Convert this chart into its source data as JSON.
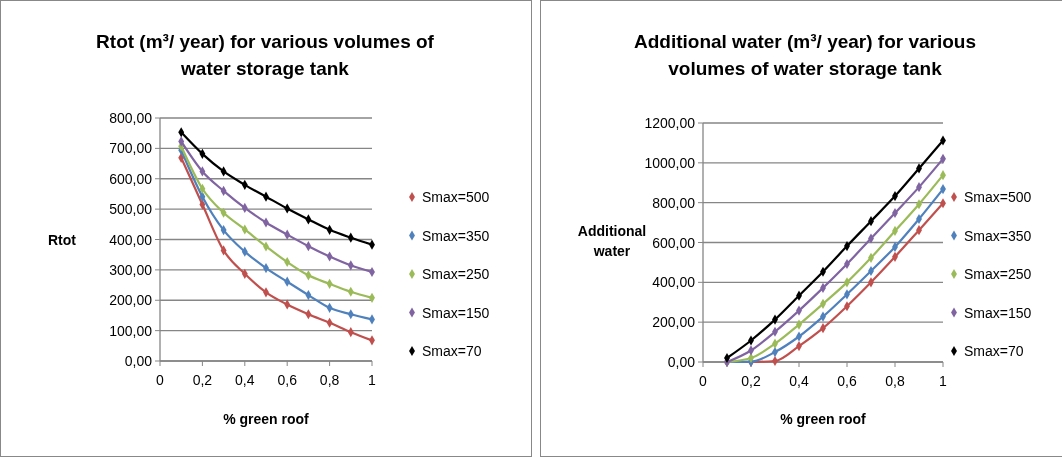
{
  "chart_data": [
    {
      "type": "line",
      "title": "Rtot (m³/ year) for various volumes of water storage tank",
      "xlabel": "% green roof",
      "ylabel": "Rtot",
      "x": [
        0.1,
        0.2,
        0.3,
        0.4,
        0.5,
        0.6,
        0.7,
        0.8,
        0.9,
        1
      ],
      "xlim": [
        0,
        1
      ],
      "xticks": [
        {
          "value": 0,
          "label": "0"
        },
        {
          "value": 0.2,
          "label": "0,2"
        },
        {
          "value": 0.4,
          "label": "0,4"
        },
        {
          "value": 0.6,
          "label": "0,6"
        },
        {
          "value": 0.8,
          "label": "0,8"
        },
        {
          "value": 1,
          "label": "1"
        }
      ],
      "ylim": [
        0,
        800
      ],
      "yticks": [
        {
          "value": 0,
          "label": "0,00"
        },
        {
          "value": 100,
          "label": "100,00"
        },
        {
          "value": 200,
          "label": "200,00"
        },
        {
          "value": 300,
          "label": "300,00"
        },
        {
          "value": 400,
          "label": "400,00"
        },
        {
          "value": 500,
          "label": "500,00"
        },
        {
          "value": 600,
          "label": "600,00"
        },
        {
          "value": 700,
          "label": "700,00"
        },
        {
          "value": 800,
          "label": "800,00"
        }
      ],
      "grid": "y",
      "legend": "right",
      "marker": "diamond",
      "line_style": "solid",
      "series": [
        {
          "name": "Smax=500",
          "color": "#c0504d",
          "values": [
            669,
            515,
            364,
            287,
            226,
            186,
            154,
            126,
            95,
            68
          ]
        },
        {
          "name": "Smax=350",
          "color": "#4f81bd",
          "values": [
            694,
            541,
            431,
            360,
            306,
            261,
            217,
            175,
            154,
            137
          ]
        },
        {
          "name": "Smax=250",
          "color": "#9bbb59",
          "values": [
            707,
            567,
            488,
            433,
            377,
            326,
            282,
            254,
            228,
            208
          ]
        },
        {
          "name": "Smax=150",
          "color": "#8064a2",
          "values": [
            723,
            624,
            560,
            504,
            456,
            416,
            378,
            344,
            315,
            293
          ]
        },
        {
          "name": "Smax=70",
          "color": "#000000",
          "values": [
            753,
            682,
            624,
            580,
            541,
            502,
            466,
            432,
            406,
            383
          ]
        }
      ]
    },
    {
      "type": "line",
      "title": "Additional water (m³/ year)  for various volumes of water storage tank",
      "xlabel": "% green roof",
      "ylabel": "Additional water",
      "x": [
        0.1,
        0.2,
        0.3,
        0.4,
        0.5,
        0.6,
        0.7,
        0.8,
        0.9,
        1
      ],
      "xlim": [
        0,
        1
      ],
      "xticks": [
        {
          "value": 0,
          "label": "0"
        },
        {
          "value": 0.2,
          "label": "0,2"
        },
        {
          "value": 0.4,
          "label": "0,4"
        },
        {
          "value": 0.6,
          "label": "0,6"
        },
        {
          "value": 0.8,
          "label": "0,8"
        },
        {
          "value": 1,
          "label": "1"
        }
      ],
      "ylim": [
        0,
        1200
      ],
      "yticks": [
        {
          "value": 0,
          "label": "0,00"
        },
        {
          "value": 200,
          "label": "200,00"
        },
        {
          "value": 400,
          "label": "400,00"
        },
        {
          "value": 600,
          "label": "600,00"
        },
        {
          "value": 800,
          "label": "800,00"
        },
        {
          "value": 1000,
          "label": "1000,00"
        },
        {
          "value": 1200,
          "label": "1200,00"
        }
      ],
      "grid": "y",
      "legend": "right",
      "marker": "diamond",
      "line_style": "solid",
      "series": [
        {
          "name": "Smax=500",
          "color": "#c0504d",
          "values": [
            0,
            0,
            5,
            80,
            170,
            280,
            400,
            528,
            662,
            797
          ]
        },
        {
          "name": "Smax=350",
          "color": "#4f81bd",
          "values": [
            0,
            2,
            50,
            128,
            228,
            340,
            457,
            578,
            718,
            868
          ]
        },
        {
          "name": "Smax=250",
          "color": "#9bbb59",
          "values": [
            0,
            20,
            92,
            188,
            292,
            400,
            523,
            658,
            792,
            938
          ]
        },
        {
          "name": "Smax=150",
          "color": "#8064a2",
          "values": [
            0,
            58,
            152,
            258,
            372,
            492,
            620,
            748,
            878,
            1020
          ]
        },
        {
          "name": "Smax=70",
          "color": "#000000",
          "values": [
            20,
            108,
            213,
            333,
            453,
            582,
            707,
            833,
            972,
            1112
          ]
        }
      ]
    }
  ]
}
